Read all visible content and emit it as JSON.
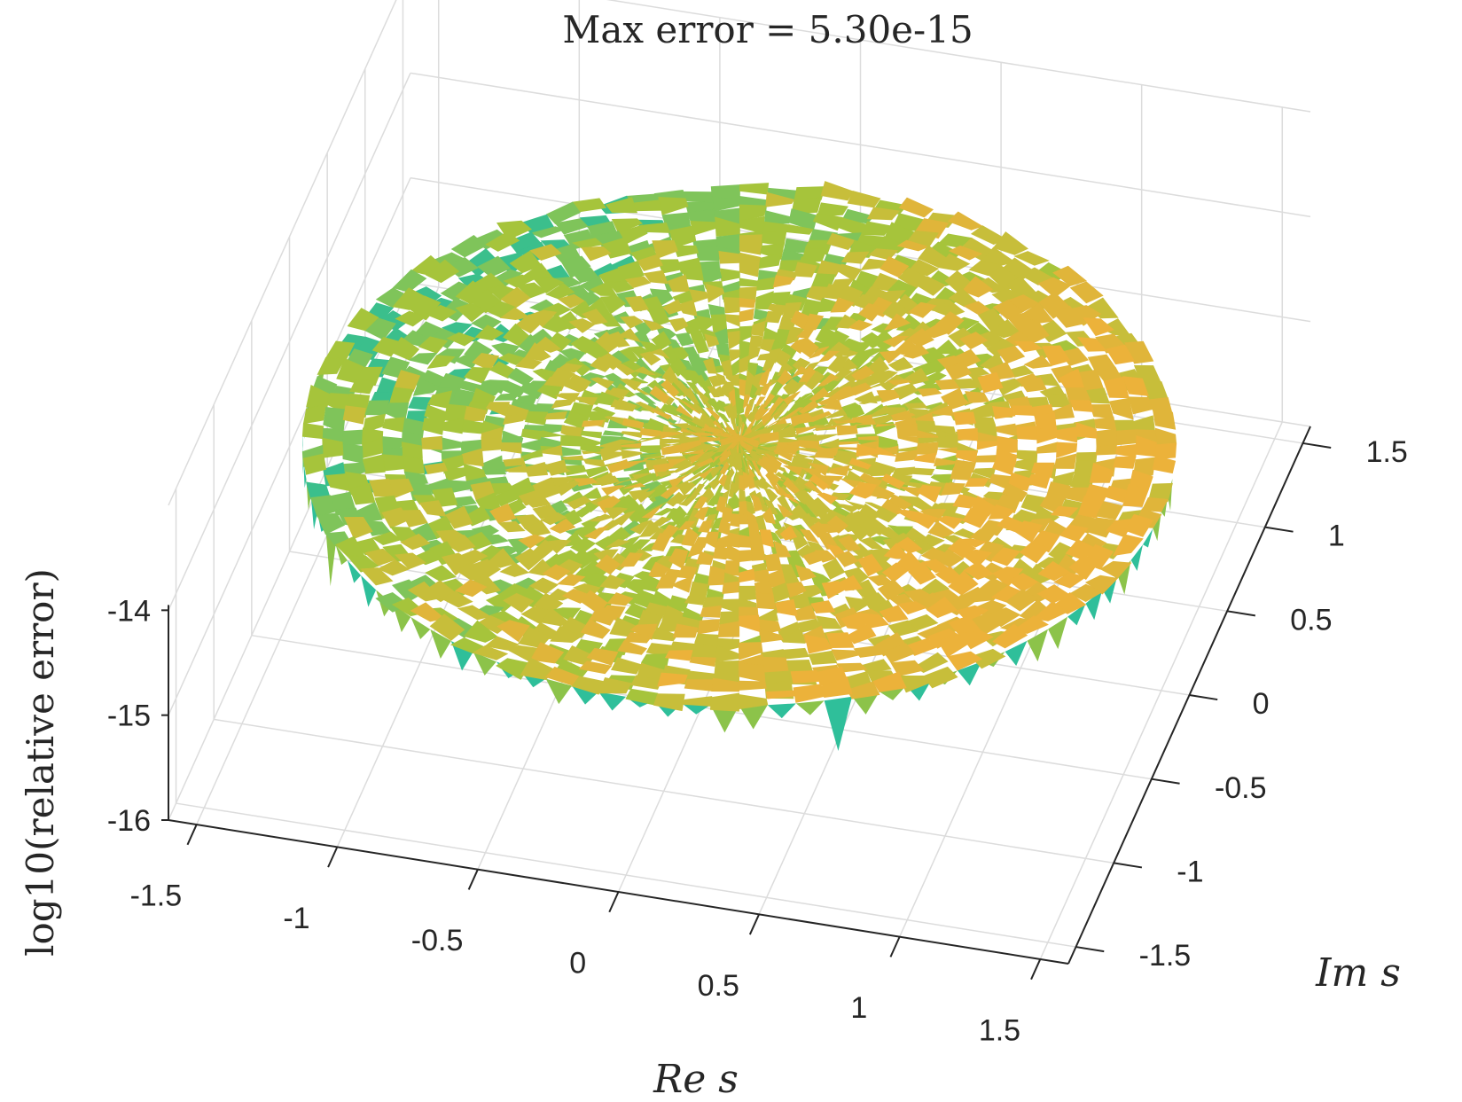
{
  "chart_data": {
    "type": "surface",
    "title": "Max error = 5.30e-15",
    "xlabel": "Re s",
    "ylabel": "Im s",
    "zlabel": "log10(relative error)",
    "x_ticks": [
      "-1.5",
      "-1",
      "-0.5",
      "0",
      "0.5",
      "1",
      "1.5"
    ],
    "y_ticks": [
      "-1.5",
      "-1",
      "-0.5",
      "0",
      "0.5",
      "1",
      "1.5"
    ],
    "z_ticks": [
      "-16",
      "-15",
      "-14"
    ],
    "x_tick_values": [
      -1.5,
      -1,
      -0.5,
      0,
      0.5,
      1,
      1.5
    ],
    "y_tick_values": [
      -1.5,
      -1,
      -0.5,
      0,
      0.5,
      1,
      1.5
    ],
    "z_tick_values": [
      -16,
      -15,
      -14
    ],
    "xlim": [
      -1.6,
      1.6
    ],
    "ylim": [
      -1.6,
      1.6
    ],
    "zlim": [
      -16,
      -13
    ],
    "domain": "unit disk |s| <= 1.5",
    "surface_level": -14.3,
    "grid": true,
    "colormap": [
      "#3e26a8",
      "#2f74d6",
      "#12b1c5",
      "#3bbf8c",
      "#a6c43b",
      "#eab43a",
      "#f9fb0e"
    ]
  }
}
